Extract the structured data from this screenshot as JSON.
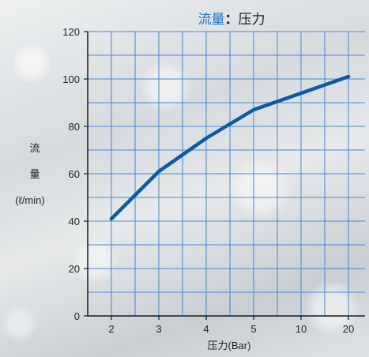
{
  "chart_data": {
    "type": "line",
    "title": {
      "part1": "流量",
      "separator": "：",
      "part2": "压力"
    },
    "xlabel": "压力(Bar)",
    "ylabel": {
      "char1": "流",
      "char2": "量",
      "unit": "(ℓ/min)"
    },
    "categories": [
      "2",
      "3",
      "4",
      "5",
      "10",
      "20"
    ],
    "values": [
      41,
      61,
      75,
      87,
      94,
      101
    ],
    "ylim": [
      0,
      120
    ],
    "yticks": [
      "0",
      "20",
      "40",
      "60",
      "80",
      "100",
      "120"
    ],
    "grid": true,
    "colors": {
      "line": "#0a5aa8",
      "grid": "#4a86d6",
      "title_accent": "#1a73c8"
    }
  }
}
